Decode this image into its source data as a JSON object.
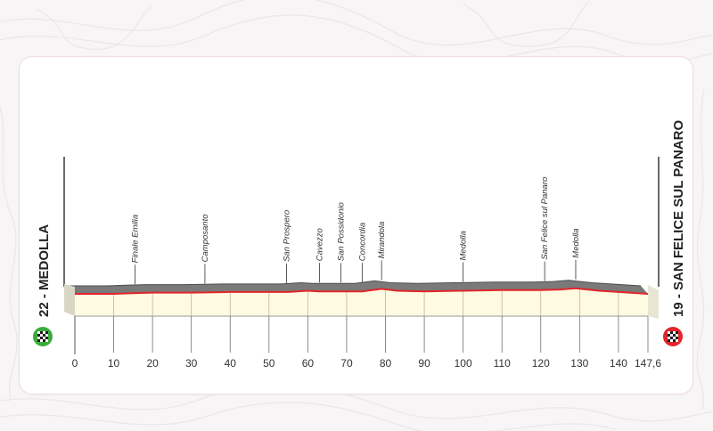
{
  "chart_data": {
    "type": "area",
    "title": "",
    "xlabel": "",
    "ylabel": "",
    "x_ticks": [
      "0",
      "10",
      "20",
      "30",
      "40",
      "50",
      "60",
      "70",
      "80",
      "90",
      "100",
      "110",
      "120",
      "130",
      "140",
      "147,6"
    ],
    "xlim": [
      0,
      147.6
    ],
    "start": {
      "label": "22 - MEDOLLA",
      "marker": "green-checkered-flag-icon"
    },
    "finish": {
      "label": "19 - SAN FELICE SUL PANARO",
      "marker": "red-checkered-flag-icon"
    },
    "waypoints": [
      {
        "name": "Finale Emilia",
        "km": 15.5
      },
      {
        "name": "Camposanto",
        "km": 33.5
      },
      {
        "name": "San Prospero",
        "km": 54.5
      },
      {
        "name": "Cavezzo",
        "km": 63
      },
      {
        "name": "San Possidonio",
        "km": 68.5
      },
      {
        "name": "Concordia",
        "km": 74
      },
      {
        "name": "Mirandola",
        "km": 79
      },
      {
        "name": "Medolla",
        "km": 100
      },
      {
        "name": "San Felice sul Panaro",
        "km": 121
      },
      {
        "name": "Medolla",
        "km": 129
      }
    ],
    "elevation_profile": {
      "x": [
        0,
        10,
        15,
        20,
        30,
        40,
        50,
        55,
        60,
        63,
        68,
        74,
        79,
        83,
        90,
        100,
        110,
        120,
        125,
        129,
        135,
        140,
        147.6
      ],
      "values": [
        19,
        19,
        19.5,
        20,
        20,
        20.5,
        20.5,
        20.5,
        21.5,
        21,
        21,
        21,
        23,
        21.5,
        21,
        21.5,
        22,
        22,
        22.5,
        23.5,
        21.5,
        20.5,
        19
      ]
    },
    "colors": {
      "profile_fill": "#fffbe2",
      "profile_line": "#e2262a",
      "ridge": "#7a7a7a",
      "ridge_top": "#4e4e4e",
      "axis": "#1a1a1a",
      "start_flag": "#3aad3a",
      "finish_flag": "#e2262a"
    }
  }
}
